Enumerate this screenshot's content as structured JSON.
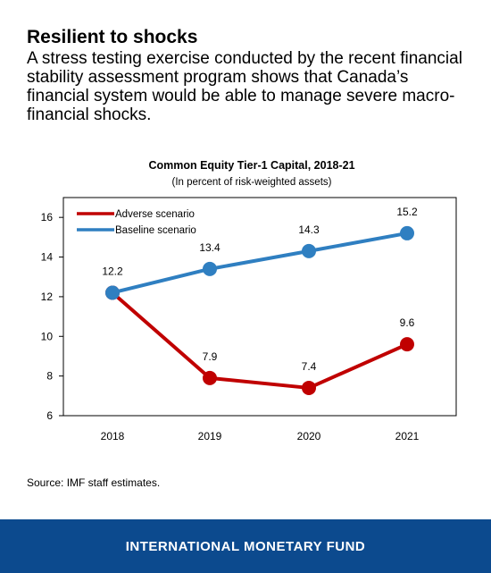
{
  "header": {
    "title": "Resilient to shocks",
    "subtitle": "A stress testing exercise conducted by the recent financial stability assessment program shows that Canada’s financial system would be able to manage severe macro-financial shocks."
  },
  "chart_data": {
    "type": "line",
    "title": "Common Equity Tier-1 Capital, 2018-21",
    "subtitle": "(In percent of risk-weighted assets)",
    "xlabel": "",
    "ylabel": "",
    "categories": [
      "2018",
      "2019",
      "2020",
      "2021"
    ],
    "ylim": [
      6,
      17
    ],
    "yticks": [
      6,
      8,
      10,
      12,
      14,
      16
    ],
    "grid": false,
    "legend_position": "top-left",
    "series": [
      {
        "name": "Adverse scenario",
        "color": "#c00000",
        "values": [
          12.2,
          7.9,
          7.4,
          9.6
        ],
        "labels": [
          "",
          "7.9",
          "7.4",
          "9.6"
        ]
      },
      {
        "name": "Baseline scenario",
        "color": "#2f7fc1",
        "values": [
          12.2,
          13.4,
          14.3,
          15.2
        ],
        "labels": [
          "12.2",
          "13.4",
          "14.3",
          "15.2"
        ]
      }
    ]
  },
  "source": "Source: IMF staff estimates.",
  "footer": {
    "brand": "INTERNATIONAL MONETARY FUND",
    "color": "#0c4a8e"
  }
}
